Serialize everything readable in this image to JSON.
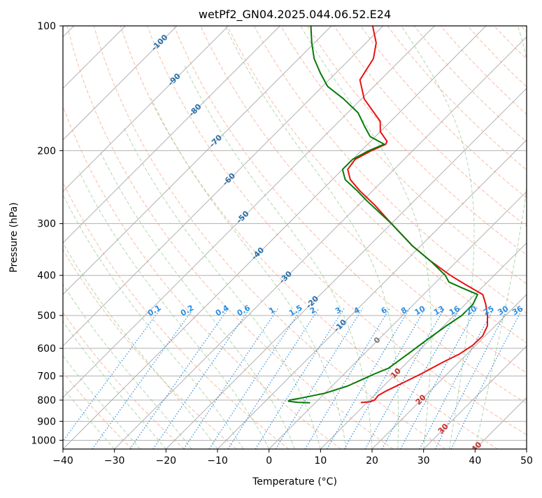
{
  "chart_data": {
    "type": "line",
    "title": "wetPf2_GN04.2025.044.06.52.E24",
    "xlabel": "Temperature (°C)",
    "ylabel": "Pressure (hPa)",
    "xlim": [
      -40,
      50
    ],
    "ylim": [
      1050,
      100
    ],
    "y_scale": "log",
    "grid": true,
    "x_ticks": [
      -40,
      -30,
      -20,
      -10,
      0,
      10,
      20,
      30,
      40,
      50
    ],
    "y_ticks": [
      100,
      200,
      300,
      400,
      500,
      600,
      700,
      800,
      900,
      1000
    ],
    "skew": true,
    "isotherms": [
      -100,
      -90,
      -80,
      -70,
      -60,
      -50,
      -40,
      -30,
      -20,
      -10,
      0,
      10,
      20,
      30,
      40
    ],
    "isotherm_labels_blue": [
      "-100",
      "-90",
      "-80",
      "-70",
      "-60",
      "-50",
      "-40",
      "-30",
      "-20",
      "-10"
    ],
    "isotherm_labels_gray": [
      "0"
    ],
    "isotherm_labels_red": [
      "10",
      "20",
      "30",
      "40"
    ],
    "mixing_ratio_labels": [
      "0.1",
      "0.2",
      "0.4",
      "0.6",
      "1",
      "1.5",
      "2",
      "3",
      "4",
      "6",
      "8",
      "10",
      "13",
      "16",
      "20",
      "25",
      "30",
      "36"
    ],
    "series": [
      {
        "name": "temperature",
        "color": "#e8110f",
        "points": [
          {
            "p": 811,
            "t": 8.8
          },
          {
            "p": 808,
            "t": 10.3
          },
          {
            "p": 800,
            "t": 11.0
          },
          {
            "p": 780,
            "t": 10.8
          },
          {
            "p": 760,
            "t": 11.5
          },
          {
            "p": 720,
            "t": 13.5
          },
          {
            "p": 690,
            "t": 15.0
          },
          {
            "p": 650,
            "t": 16.8
          },
          {
            "p": 620,
            "t": 18.5
          },
          {
            "p": 590,
            "t": 19.4
          },
          {
            "p": 560,
            "t": 19.5
          },
          {
            "p": 530,
            "t": 18.5
          },
          {
            "p": 500,
            "t": 16.5
          },
          {
            "p": 470,
            "t": 14.0
          },
          {
            "p": 445,
            "t": 11.5
          },
          {
            "p": 420,
            "t": 6.0
          },
          {
            "p": 400,
            "t": 1.5
          },
          {
            "p": 370,
            "t": -5.0
          },
          {
            "p": 340,
            "t": -11.5
          },
          {
            "p": 300,
            "t": -20.0
          },
          {
            "p": 270,
            "t": -27.0
          },
          {
            "p": 250,
            "t": -32.5
          },
          {
            "p": 235,
            "t": -36.5
          },
          {
            "p": 222,
            "t": -39.0
          },
          {
            "p": 210,
            "t": -39.5
          },
          {
            "p": 200,
            "t": -38.0
          },
          {
            "p": 193,
            "t": -36.5
          },
          {
            "p": 190,
            "t": -36.8
          },
          {
            "p": 180,
            "t": -40.0
          },
          {
            "p": 170,
            "t": -42.0
          },
          {
            "p": 150,
            "t": -49.5
          },
          {
            "p": 135,
            "t": -54.0
          },
          {
            "p": 120,
            "t": -55.5
          },
          {
            "p": 110,
            "t": -58.0
          },
          {
            "p": 100,
            "t": -62.0
          }
        ]
      },
      {
        "name": "dewpoint",
        "color": "#067a06",
        "points": [
          {
            "p": 812,
            "t": -1.0
          },
          {
            "p": 810,
            "t": -3.5
          },
          {
            "p": 805,
            "t": -5.5
          },
          {
            "p": 800,
            "t": -5.5
          },
          {
            "p": 790,
            "t": -3.5
          },
          {
            "p": 770,
            "t": 0.0
          },
          {
            "p": 740,
            "t": 3.0
          },
          {
            "p": 715,
            "t": 4.5
          },
          {
            "p": 690,
            "t": 6.0
          },
          {
            "p": 670,
            "t": 7.5
          },
          {
            "p": 620,
            "t": 8.5
          },
          {
            "p": 570,
            "t": 9.5
          },
          {
            "p": 530,
            "t": 10.5
          },
          {
            "p": 500,
            "t": 11.5
          },
          {
            "p": 470,
            "t": 11.5
          },
          {
            "p": 445,
            "t": 10.5
          },
          {
            "p": 430,
            "t": 6.5
          },
          {
            "p": 415,
            "t": 2.5
          },
          {
            "p": 400,
            "t": 0.5
          },
          {
            "p": 370,
            "t": -5.0
          },
          {
            "p": 340,
            "t": -11.5
          },
          {
            "p": 300,
            "t": -20.0
          },
          {
            "p": 265,
            "t": -29.0
          },
          {
            "p": 250,
            "t": -33.0
          },
          {
            "p": 235,
            "t": -37.5
          },
          {
            "p": 222,
            "t": -40.0
          },
          {
            "p": 210,
            "t": -40.0
          },
          {
            "p": 200,
            "t": -38.5
          },
          {
            "p": 193,
            "t": -36.8
          },
          {
            "p": 185,
            "t": -41.0
          },
          {
            "p": 175,
            "t": -44.0
          },
          {
            "p": 162,
            "t": -48.0
          },
          {
            "p": 150,
            "t": -53.5
          },
          {
            "p": 140,
            "t": -59.0
          },
          {
            "p": 130,
            "t": -63.0
          },
          {
            "p": 120,
            "t": -67.0
          },
          {
            "p": 110,
            "t": -70.5
          },
          {
            "p": 100,
            "t": -74.0
          }
        ]
      }
    ]
  }
}
